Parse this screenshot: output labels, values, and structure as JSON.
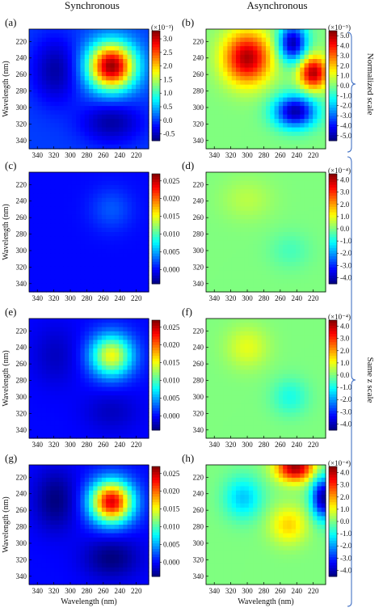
{
  "figure": {
    "column_titles": [
      "Synchronous",
      "Asynchronous"
    ],
    "side_labels": {
      "normalized": "Normalized scale",
      "same": "Same z scale"
    }
  },
  "chart_data": [
    {
      "panel": "(a)",
      "type": "heatmap",
      "xlabel": "",
      "ylabel": "Wavelength (nm)",
      "x_ticks": [
        340,
        320,
        300,
        280,
        260,
        240,
        220
      ],
      "y_ticks": [
        220,
        240,
        260,
        280,
        300,
        320,
        340
      ],
      "xlim": [
        350,
        205
      ],
      "ylim": [
        205,
        350
      ],
      "colorbar": {
        "multiplier": "(×10⁻³)",
        "ticks": [
          "3.0",
          "2.5",
          "2.0",
          "1.5",
          "1.0",
          "0.5",
          "0.0",
          "-0.5"
        ],
        "zmin": -0.75,
        "zmax": 3.3
      },
      "features": [
        {
          "type": "peak",
          "x": 250,
          "y": 250,
          "value": 3.2,
          "sx": 20,
          "sy": 20
        },
        {
          "type": "valley",
          "x": 318,
          "y": 255,
          "value": -0.6,
          "sx": 20,
          "sy": 28
        },
        {
          "type": "valley",
          "x": 250,
          "y": 318,
          "value": -0.6,
          "sx": 26,
          "sy": 18
        }
      ]
    },
    {
      "panel": "(b)",
      "type": "heatmap",
      "xlabel": "",
      "ylabel": "",
      "x_ticks": [
        340,
        320,
        300,
        280,
        260,
        240,
        220
      ],
      "y_ticks": [
        220,
        240,
        260,
        280,
        300,
        320,
        340
      ],
      "xlim": [
        350,
        205
      ],
      "ylim": [
        205,
        350
      ],
      "colorbar": {
        "multiplier": "(×10⁻⁵)",
        "ticks": [
          "5.0",
          "4.0",
          "3.0",
          "2.0",
          "1.0",
          "0.0",
          "-1.0",
          "-2.0",
          "-3.0",
          "-4.0",
          "-5.0"
        ],
        "zmin": -5.5,
        "zmax": 5.5
      },
      "features": [
        {
          "type": "peak",
          "x": 300,
          "y": 240,
          "value": 5.0,
          "sx": 20,
          "sy": 22
        },
        {
          "type": "peak",
          "x": 220,
          "y": 258,
          "value": 5.0,
          "sx": 12,
          "sy": 14
        },
        {
          "type": "valley",
          "x": 245,
          "y": 222,
          "value": -5.0,
          "sx": 12,
          "sy": 16
        },
        {
          "type": "valley",
          "x": 242,
          "y": 305,
          "value": -5.0,
          "sx": 18,
          "sy": 14
        }
      ]
    },
    {
      "panel": "(c)",
      "type": "heatmap",
      "xlabel": "",
      "ylabel": "Wavelength (nm)",
      "x_ticks": [
        340,
        320,
        300,
        280,
        260,
        240,
        220
      ],
      "y_ticks": [
        220,
        240,
        260,
        280,
        300,
        320,
        340
      ],
      "xlim": [
        350,
        205
      ],
      "ylim": [
        205,
        350
      ],
      "colorbar": {
        "multiplier": "",
        "ticks": [
          "0.025",
          "0.020",
          "0.015",
          "0.010",
          "0.005",
          "0.000"
        ],
        "zmin": -0.004,
        "zmax": 0.027
      },
      "features": [
        {
          "type": "peak",
          "x": 250,
          "y": 250,
          "value": 0.0025,
          "sx": 18,
          "sy": 18
        }
      ]
    },
    {
      "panel": "(d)",
      "type": "heatmap",
      "xlabel": "",
      "ylabel": "",
      "x_ticks": [
        340,
        320,
        300,
        280,
        260,
        240,
        220
      ],
      "y_ticks": [
        220,
        240,
        260,
        280,
        300,
        320,
        340
      ],
      "xlim": [
        350,
        205
      ],
      "ylim": [
        205,
        350
      ],
      "colorbar": {
        "multiplier": "(×10⁻⁴)",
        "ticks": [
          "4.0",
          "3.0",
          "2.0",
          "1.0",
          "0.0",
          "-1.0",
          "-2.0",
          "-3.0",
          "-4.0"
        ],
        "zmin": -4.5,
        "zmax": 4.5
      },
      "features": [
        {
          "type": "peak",
          "x": 300,
          "y": 238,
          "value": 0.5,
          "sx": 22,
          "sy": 18
        },
        {
          "type": "valley",
          "x": 248,
          "y": 300,
          "value": -0.5,
          "sx": 18,
          "sy": 16
        }
      ]
    },
    {
      "panel": "(e)",
      "type": "heatmap",
      "xlabel": "",
      "ylabel": "Wavelength (nm)",
      "x_ticks": [
        340,
        320,
        300,
        280,
        260,
        240,
        220
      ],
      "y_ticks": [
        220,
        240,
        260,
        280,
        300,
        320,
        340
      ],
      "xlim": [
        350,
        205
      ],
      "ylim": [
        205,
        350
      ],
      "colorbar": {
        "multiplier": "",
        "ticks": [
          "0.025",
          "0.020",
          "0.015",
          "0.010",
          "0.005",
          "0.000"
        ],
        "zmin": -0.004,
        "zmax": 0.027
      },
      "features": [
        {
          "type": "peak",
          "x": 250,
          "y": 250,
          "value": 0.015,
          "sx": 18,
          "sy": 18
        },
        {
          "type": "valley",
          "x": 318,
          "y": 250,
          "value": -0.002,
          "sx": 20,
          "sy": 26
        },
        {
          "type": "valley",
          "x": 250,
          "y": 318,
          "value": -0.002,
          "sx": 24,
          "sy": 18
        }
      ]
    },
    {
      "panel": "(f)",
      "type": "heatmap",
      "xlabel": "",
      "ylabel": "",
      "x_ticks": [
        340,
        320,
        300,
        280,
        260,
        240,
        220
      ],
      "y_ticks": [
        220,
        240,
        260,
        280,
        300,
        320,
        340
      ],
      "xlim": [
        350,
        205
      ],
      "ylim": [
        205,
        350
      ],
      "colorbar": {
        "multiplier": "(×10⁻⁴)",
        "ticks": [
          "4.0",
          "3.0",
          "2.0",
          "1.0",
          "0.0",
          "-1.0",
          "-2.0",
          "-3.0",
          "-4.0"
        ],
        "zmin": -4.5,
        "zmax": 4.5
      },
      "features": [
        {
          "type": "peak",
          "x": 300,
          "y": 240,
          "value": 0.9,
          "sx": 18,
          "sy": 18
        },
        {
          "type": "valley",
          "x": 248,
          "y": 300,
          "value": -0.9,
          "sx": 16,
          "sy": 16
        }
      ]
    },
    {
      "panel": "(g)",
      "type": "heatmap",
      "xlabel": "Wavelength (nm)",
      "ylabel": "Wavelength (nm)",
      "x_ticks": [
        340,
        320,
        300,
        280,
        260,
        240,
        220
      ],
      "y_ticks": [
        220,
        240,
        260,
        280,
        300,
        320,
        340
      ],
      "xlim": [
        350,
        205
      ],
      "ylim": [
        205,
        350
      ],
      "colorbar": {
        "multiplier": "",
        "ticks": [
          "0.025",
          "0.020",
          "0.015",
          "0.010",
          "0.005",
          "0.000"
        ],
        "zmin": -0.004,
        "zmax": 0.027
      },
      "features": [
        {
          "type": "peak",
          "x": 250,
          "y": 250,
          "value": 0.024,
          "sx": 18,
          "sy": 18
        },
        {
          "type": "valley",
          "x": 318,
          "y": 248,
          "value": -0.004,
          "sx": 18,
          "sy": 26
        },
        {
          "type": "valley",
          "x": 250,
          "y": 318,
          "value": -0.004,
          "sx": 24,
          "sy": 18
        }
      ]
    },
    {
      "panel": "(h)",
      "type": "heatmap",
      "xlabel": "Wavelength (nm)",
      "ylabel": "",
      "x_ticks": [
        340,
        320,
        300,
        280,
        260,
        240,
        220
      ],
      "y_ticks": [
        220,
        240,
        260,
        280,
        300,
        320,
        340
      ],
      "xlim": [
        350,
        205
      ],
      "ylim": [
        205,
        350
      ],
      "colorbar": {
        "multiplier": "(×10⁻⁴)",
        "ticks": [
          "4.0",
          "3.0",
          "2.0",
          "1.0",
          "0.0",
          "-1.0",
          "-2.0",
          "-3.0",
          "-4.0"
        ],
        "zmin": -4.5,
        "zmax": 4.5
      },
      "features": [
        {
          "type": "peak",
          "x": 242,
          "y": 208,
          "value": 4.2,
          "sx": 16,
          "sy": 12
        },
        {
          "type": "peak",
          "x": 250,
          "y": 278,
          "value": 1.5,
          "sx": 16,
          "sy": 16
        },
        {
          "type": "valley",
          "x": 208,
          "y": 245,
          "value": -4.2,
          "sx": 10,
          "sy": 18
        },
        {
          "type": "valley",
          "x": 305,
          "y": 245,
          "value": -1.6,
          "sx": 16,
          "sy": 18
        }
      ]
    }
  ]
}
